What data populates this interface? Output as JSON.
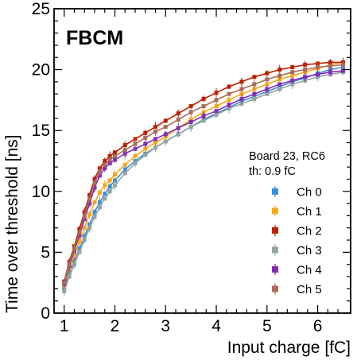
{
  "chart_data": {
    "type": "scatter",
    "experiment_label": "FBCM",
    "xlabel": "Input charge [fC]",
    "ylabel": "Time over threshold [ns]",
    "xlim": [
      0.8,
      6.65
    ],
    "ylim": [
      0,
      25
    ],
    "x_ticks": [
      1,
      2,
      3,
      4,
      5,
      6
    ],
    "y_ticks": [
      0,
      5,
      10,
      15,
      20,
      25
    ],
    "info_lines": [
      "Board 23, RC6",
      "th: 0.9 fC"
    ],
    "legend_position": "right",
    "grid": false,
    "series": [
      {
        "name": "Ch 0",
        "color": "#3f8fd2",
        "x": [
          1.0,
          1.1,
          1.2,
          1.3,
          1.4,
          1.5,
          1.6,
          1.7,
          1.8,
          1.9,
          2.0,
          2.2,
          2.4,
          2.6,
          2.8,
          3.0,
          3.25,
          3.5,
          3.75,
          4.0,
          4.25,
          4.5,
          4.75,
          5.0,
          5.25,
          5.5,
          5.75,
          6.0,
          6.25,
          6.5
        ],
        "y": [
          2.0,
          3.3,
          4.3,
          5.3,
          6.3,
          7.3,
          8.3,
          9.1,
          9.8,
          10.4,
          10.9,
          11.8,
          12.5,
          13.1,
          13.6,
          14.1,
          14.7,
          15.3,
          15.9,
          16.4,
          16.9,
          17.4,
          17.8,
          18.2,
          18.6,
          19.0,
          19.3,
          19.7,
          20.0,
          20.2
        ]
      },
      {
        "name": "Ch 1",
        "color": "#f7a81b",
        "x": [
          1.0,
          1.1,
          1.2,
          1.3,
          1.4,
          1.5,
          1.6,
          1.7,
          1.8,
          1.9,
          2.0,
          2.2,
          2.4,
          2.6,
          2.8,
          3.0,
          3.25,
          3.5,
          3.75,
          4.0,
          4.25,
          4.5,
          4.75,
          5.0,
          5.25,
          5.5,
          5.75,
          6.0,
          6.25,
          6.5
        ],
        "y": [
          2.3,
          3.7,
          4.8,
          5.9,
          7.0,
          8.1,
          9.1,
          9.9,
          10.5,
          10.9,
          11.4,
          12.2,
          12.9,
          13.5,
          14.0,
          14.5,
          15.2,
          15.9,
          16.5,
          17.0,
          17.5,
          18.0,
          18.4,
          18.8,
          19.2,
          19.5,
          19.8,
          20.1,
          20.4,
          20.6
        ]
      },
      {
        "name": "Ch 2",
        "color": "#bd1f01",
        "x": [
          1.0,
          1.1,
          1.2,
          1.3,
          1.4,
          1.5,
          1.6,
          1.7,
          1.8,
          1.9,
          2.0,
          2.2,
          2.4,
          2.6,
          2.8,
          3.0,
          3.25,
          3.5,
          3.75,
          4.0,
          4.25,
          4.5,
          4.75,
          5.0,
          5.25,
          5.5,
          5.75,
          6.0,
          6.25,
          6.5
        ],
        "y": [
          2.6,
          4.2,
          5.5,
          6.9,
          8.3,
          9.7,
          11.0,
          11.9,
          12.5,
          12.9,
          13.2,
          13.8,
          14.3,
          14.8,
          15.3,
          15.8,
          16.4,
          17.0,
          17.6,
          18.1,
          18.6,
          19.0,
          19.4,
          19.7,
          20.0,
          20.2,
          20.4,
          20.5,
          20.6,
          20.6
        ]
      },
      {
        "name": "Ch 3",
        "color": "#94a4a2",
        "x": [
          1.0,
          1.1,
          1.2,
          1.3,
          1.4,
          1.5,
          1.6,
          1.7,
          1.8,
          1.9,
          2.0,
          2.2,
          2.4,
          2.6,
          2.8,
          3.0,
          3.25,
          3.5,
          3.75,
          4.0,
          4.25,
          4.5,
          4.75,
          5.0,
          5.25,
          5.5,
          5.75,
          6.0,
          6.25,
          6.5
        ],
        "y": [
          1.8,
          3.0,
          4.0,
          5.0,
          6.0,
          7.0,
          7.9,
          8.7,
          9.4,
          10.0,
          10.5,
          11.5,
          12.3,
          13.0,
          13.6,
          14.1,
          14.7,
          15.3,
          15.8,
          16.3,
          16.8,
          17.2,
          17.6,
          18.0,
          18.4,
          18.8,
          19.1,
          19.4,
          19.6,
          19.8
        ]
      },
      {
        "name": "Ch 4",
        "color": "#832db6",
        "x": [
          1.0,
          1.1,
          1.2,
          1.3,
          1.4,
          1.5,
          1.6,
          1.7,
          1.8,
          1.9,
          2.0,
          2.2,
          2.4,
          2.6,
          2.8,
          3.0,
          3.25,
          3.5,
          3.75,
          4.0,
          4.25,
          4.5,
          4.75,
          5.0,
          5.25,
          5.5,
          5.75,
          6.0,
          6.25,
          6.5
        ],
        "y": [
          2.4,
          3.9,
          5.1,
          6.4,
          7.7,
          9.0,
          10.3,
          11.3,
          11.9,
          12.3,
          12.6,
          13.1,
          13.5,
          13.9,
          14.3,
          14.7,
          15.2,
          15.7,
          16.2,
          16.6,
          17.1,
          17.6,
          18.0,
          18.4,
          18.8,
          19.1,
          19.4,
          19.6,
          19.8,
          19.9
        ]
      },
      {
        "name": "Ch 5",
        "color": "#a96b59",
        "x": [
          1.0,
          1.1,
          1.2,
          1.3,
          1.4,
          1.5,
          1.6,
          1.7,
          1.8,
          1.9,
          2.0,
          2.2,
          2.4,
          2.6,
          2.8,
          3.0,
          3.25,
          3.5,
          3.75,
          4.0,
          4.25,
          4.5,
          4.75,
          5.0,
          5.25,
          5.5,
          5.75,
          6.0,
          6.25,
          6.5
        ],
        "y": [
          2.5,
          4.0,
          5.3,
          6.6,
          8.0,
          9.4,
          10.7,
          11.6,
          12.2,
          12.6,
          12.9,
          13.4,
          13.9,
          14.4,
          14.9,
          15.3,
          15.9,
          16.5,
          17.0,
          17.5,
          18.0,
          18.4,
          18.8,
          19.2,
          19.5,
          19.8,
          20.0,
          20.2,
          20.3,
          20.4
        ]
      }
    ]
  }
}
